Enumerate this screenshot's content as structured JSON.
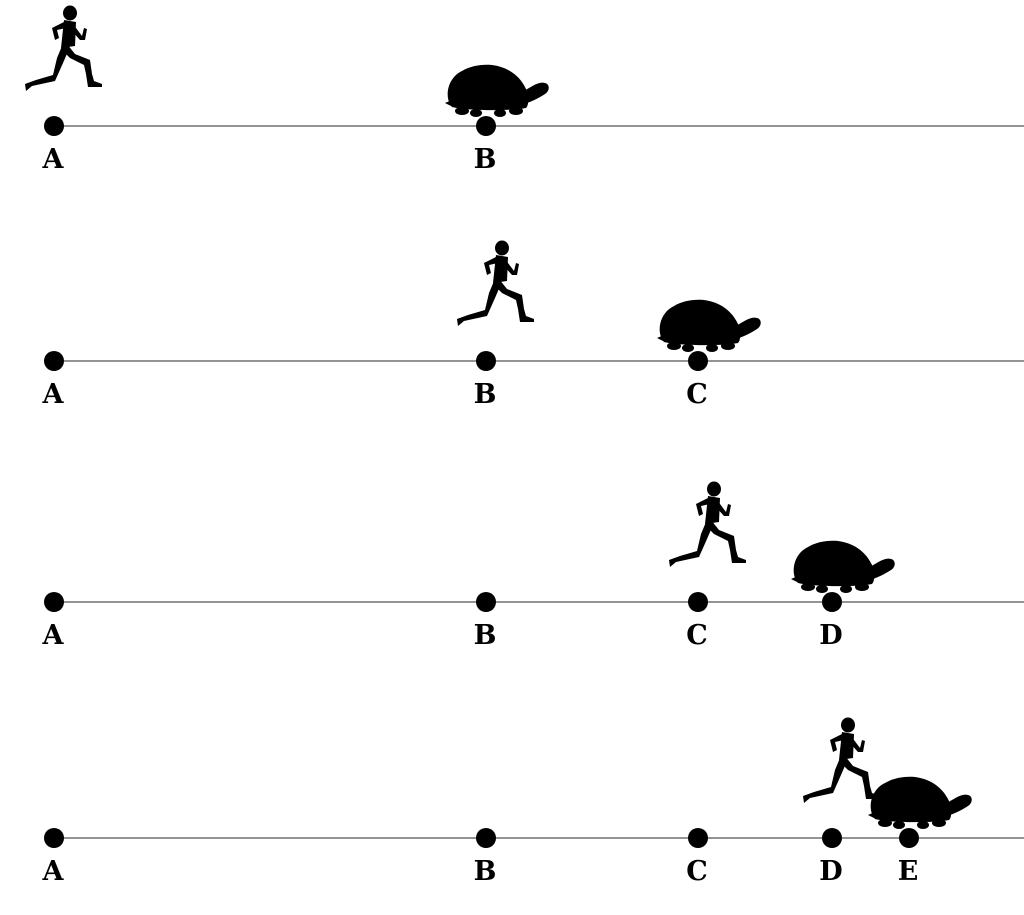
{
  "rows": [
    {
      "points": [
        {
          "label": "A"
        },
        {
          "label": "B"
        }
      ],
      "runner_at": "A",
      "tortoise_at": "B"
    },
    {
      "points": [
        {
          "label": "A"
        },
        {
          "label": "B"
        },
        {
          "label": "C"
        }
      ],
      "runner_at": "B",
      "tortoise_at": "C"
    },
    {
      "points": [
        {
          "label": "A"
        },
        {
          "label": "B"
        },
        {
          "label": "C"
        },
        {
          "label": "D"
        }
      ],
      "runner_at": "C",
      "tortoise_at": "D"
    },
    {
      "points": [
        {
          "label": "A"
        },
        {
          "label": "B"
        },
        {
          "label": "C"
        },
        {
          "label": "D"
        },
        {
          "label": "E"
        }
      ],
      "runner_at": "D",
      "tortoise_at": "E"
    }
  ],
  "icons": {
    "runner": "runner-icon",
    "tortoise": "tortoise-icon",
    "point": "point-dot"
  },
  "colors": {
    "ink": "#000000",
    "line": "#555555",
    "background": "#ffffff"
  }
}
